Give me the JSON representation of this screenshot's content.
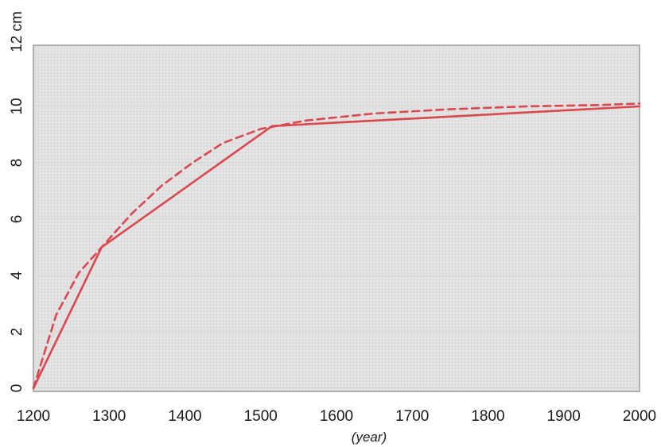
{
  "chart_data": {
    "type": "line",
    "title": "",
    "xlabel": "(year)",
    "ylabel": "",
    "y_unit_label": "12 cm",
    "xlim": [
      1200,
      2000
    ],
    "ylim": [
      0,
      12
    ],
    "x_ticks": [
      "1200",
      "1300",
      "1400",
      "1500",
      "1600",
      "1700",
      "1800",
      "1900",
      "2000"
    ],
    "y_ticks": [
      "0",
      "2",
      "4",
      "6",
      "8",
      "10"
    ],
    "grid": true,
    "plot_background": "#e3e3e3",
    "grid_color": "#cfcfcf",
    "series": [
      {
        "style": "solid",
        "color": "#d9474f",
        "x": [
          1200,
          1290,
          1515,
          2000
        ],
        "y": [
          0,
          5.0,
          9.3,
          10.0
        ]
      },
      {
        "style": "dashed",
        "color": "#d9474f",
        "x": [
          1200,
          1230,
          1260,
          1290,
          1330,
          1370,
          1410,
          1450,
          1500,
          1560,
          1650,
          1750,
          1850,
          1950,
          2000
        ],
        "y": [
          0,
          2.6,
          4.1,
          5.0,
          6.2,
          7.2,
          8.0,
          8.7,
          9.2,
          9.5,
          9.75,
          9.9,
          10.0,
          10.05,
          10.1
        ]
      }
    ]
  }
}
